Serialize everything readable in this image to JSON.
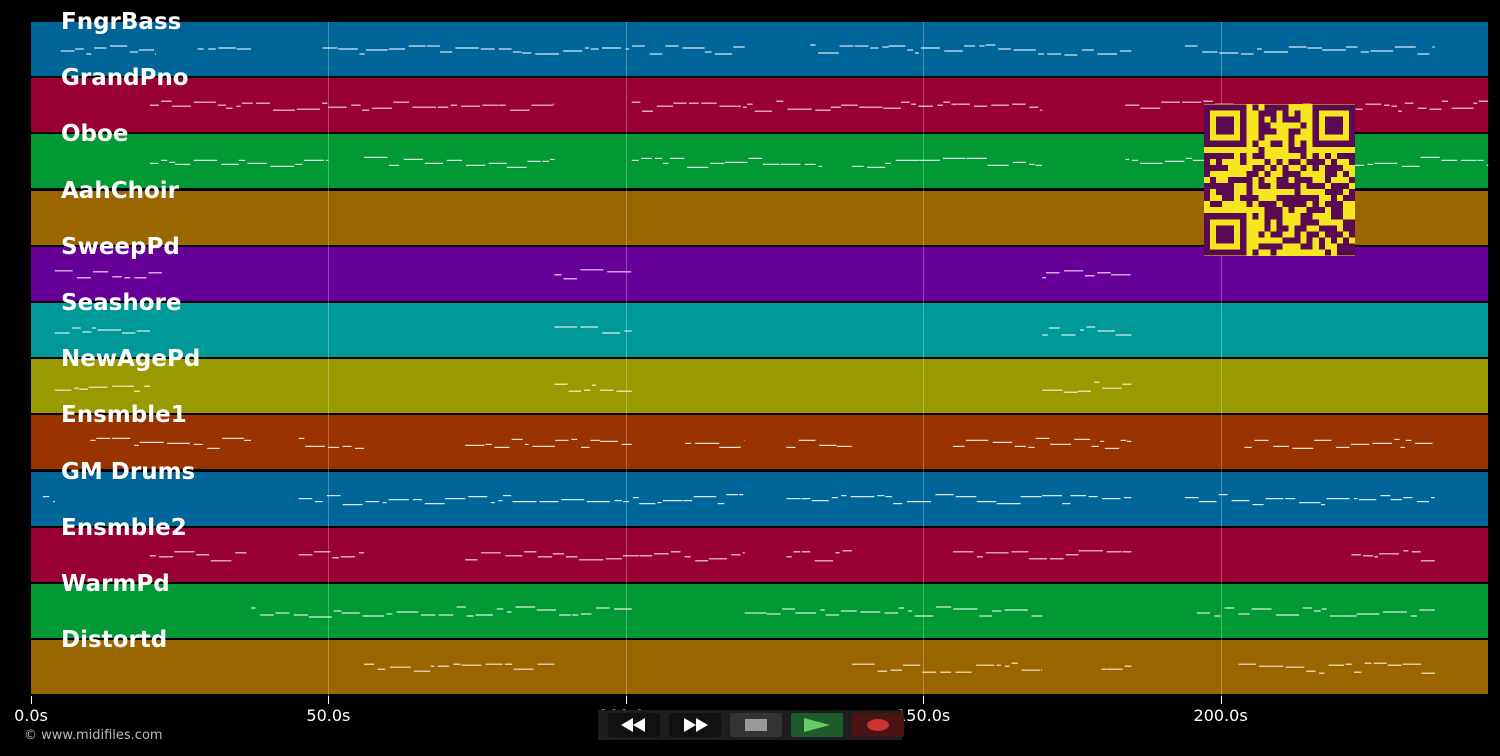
{
  "tracks": [
    {
      "name": "FngrBass",
      "color": "#006699"
    },
    {
      "name": "GrandPno",
      "color": "#990033"
    },
    {
      "name": "Oboe",
      "color": "#009933"
    },
    {
      "name": "AahChoir",
      "color": "#996600"
    },
    {
      "name": "SweepPd",
      "color": "#660099"
    },
    {
      "name": "Seashore",
      "color": "#009999"
    },
    {
      "name": "NewAgePd",
      "color": "#999900"
    },
    {
      "name": "Ensmble1",
      "color": "#993300"
    },
    {
      "name": "GM Drums",
      "color": "#006699"
    },
    {
      "name": "Ensmble2",
      "color": "#990033"
    },
    {
      "name": "WarmPd",
      "color": "#009933"
    },
    {
      "name": "Distortd",
      "color": "#996600"
    }
  ],
  "timeline": {
    "ticks": [
      {
        "t": 0,
        "label": "0.0s"
      },
      {
        "t": 50,
        "label": "50.0s"
      },
      {
        "t": 100,
        "label": "100.0s"
      },
      {
        "t": 150,
        "label": "150.0s"
      },
      {
        "t": 200,
        "label": "200.0s"
      }
    ],
    "max_seconds": 245
  },
  "transport": {
    "rewind_icon": "rewind-icon",
    "forward_icon": "fast-forward-icon",
    "stop_icon": "stop-icon",
    "play_icon": "play-icon",
    "record_icon": "record-icon",
    "play_color": "#66cc66",
    "record_color": "#cc3333"
  },
  "copyright": "© www.midifiles.com",
  "qr_icon": "qr-code-icon"
}
